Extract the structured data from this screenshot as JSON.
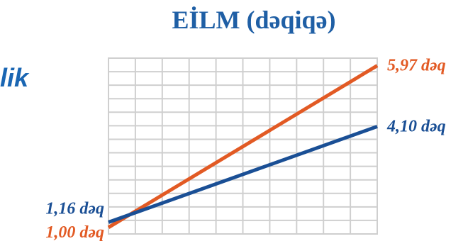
{
  "page": {
    "fragment_text": "lik",
    "title": "EİLM (dəqiqə)"
  },
  "colors": {
    "orange": "#e25a24",
    "blue": "#1a4f95",
    "grid": "#cfcfcf",
    "title": "#1f5fa5",
    "fragment": "#1a66b3"
  },
  "chart_data": {
    "type": "line",
    "title": "EİLM (dəqiqə)",
    "xlabel": "",
    "ylabel": "",
    "grid": true,
    "legend": "none",
    "ylim": [
      0.8,
      6.2
    ],
    "x": [
      0,
      1
    ],
    "series": [
      {
        "color": "#e25a24",
        "values": [
          1.0,
          5.97
        ],
        "labels": [
          "1,00 dəq",
          "5,97 dəq"
        ]
      },
      {
        "color": "#1a4f95",
        "values": [
          1.16,
          4.1
        ],
        "labels": [
          "1,16 dəq",
          "4,10 dəq"
        ]
      }
    ]
  }
}
